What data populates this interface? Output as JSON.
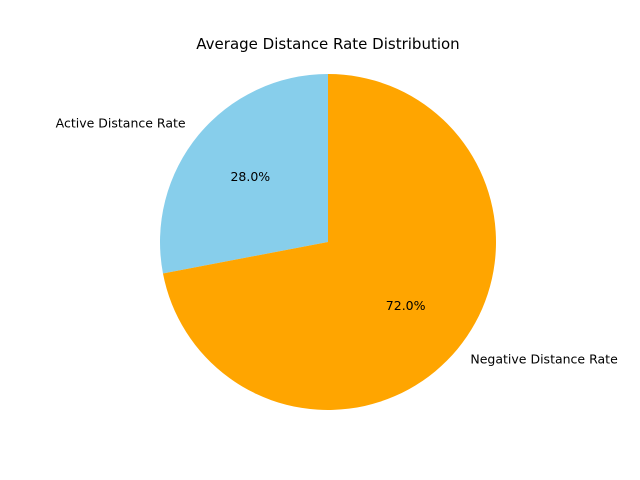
{
  "chart_data": {
    "type": "pie",
    "title": "Average Distance Rate Distribution",
    "labels": [
      "Active Distance Rate",
      "Negative Distance Rate"
    ],
    "values": [
      28.0,
      72.0
    ],
    "percent_labels": [
      "28.0%",
      "72.0%"
    ],
    "colors": [
      "#87ceeb",
      "#ffa500"
    ],
    "start_angle_deg": 90,
    "direction": "counterclockwise",
    "legend": "none"
  }
}
